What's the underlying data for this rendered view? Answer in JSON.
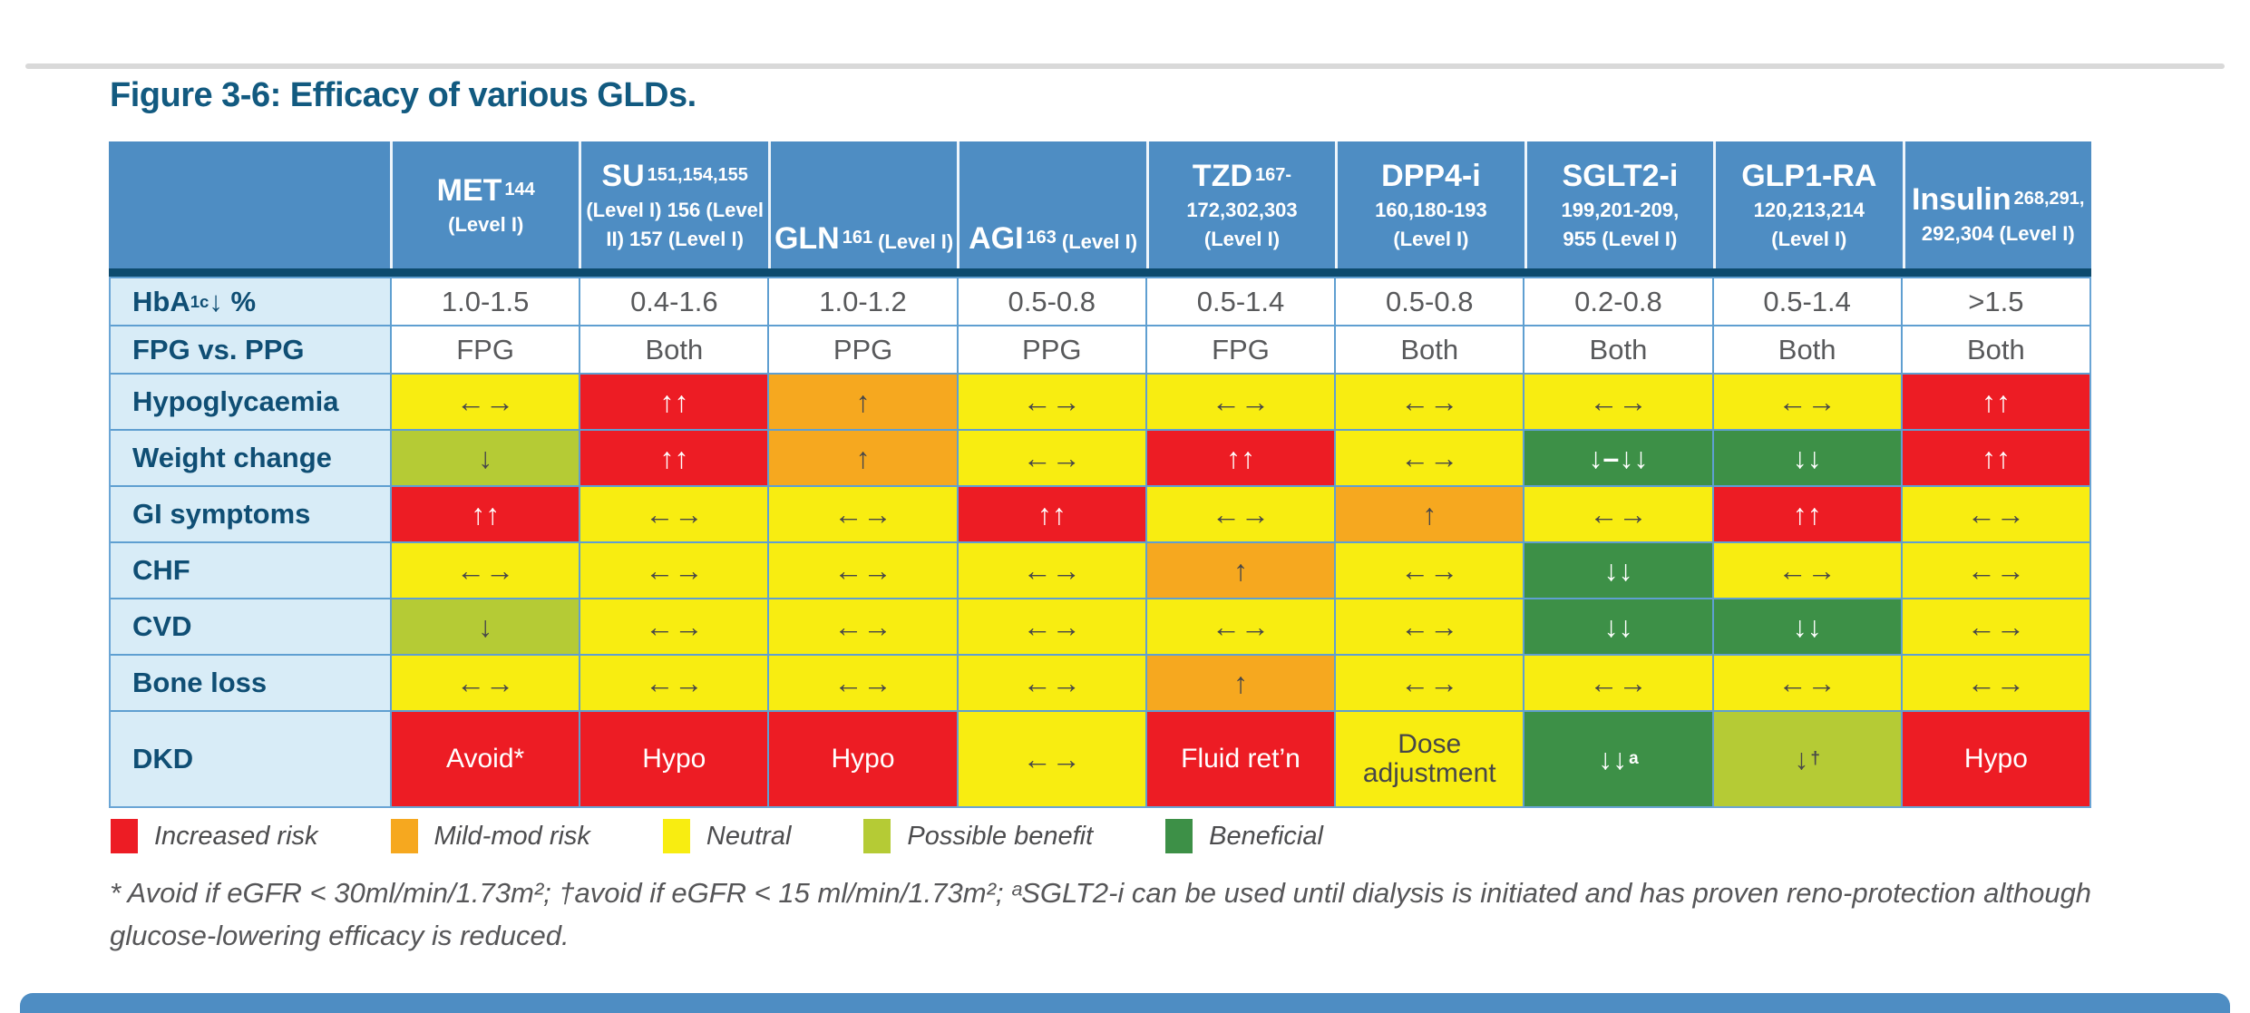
{
  "title": "Figure 3-6: Efficacy of various GLDs.",
  "palette": {
    "increased": "#ed1c24",
    "mildmod": "#f6a81f",
    "neutral": "#f8ed11",
    "possible": "#b5cb35",
    "beneficial": "#3d9047",
    "header_blue": "#4e8dc3",
    "navy": "#0d4b6e",
    "label_bg": "#d8ecf7",
    "label_text": "#0f4e74"
  },
  "table": {
    "columns": [
      {
        "main": "MET",
        "sup": "144",
        "sub": [
          "(Level I)"
        ]
      },
      {
        "main": "SU",
        "sup": "151,154,155",
        "sub": [
          "(Level I) 156 (Level",
          "II) 157 (Level I)"
        ]
      },
      {
        "main": "GLN",
        "sup": "161",
        "tail": "(Level I)",
        "valign": "bottom"
      },
      {
        "main": "AGI",
        "sup": "163",
        "tail": "(Level I)",
        "valign": "bottom"
      },
      {
        "main": "TZD",
        "sup": "167-",
        "sub": [
          "172,302,303",
          "(Level I)"
        ]
      },
      {
        "main": "DPP4-i",
        "sub": [
          "160,180-193",
          "(Level I)"
        ]
      },
      {
        "main": "SGLT2-i",
        "sub": [
          "199,201-209,",
          "955 (Level I)"
        ]
      },
      {
        "main": "GLP1-RA",
        "sub": [
          "120,213,214",
          "(Level I)"
        ]
      },
      {
        "main": "Insulin",
        "sup": "268,291,",
        "sub": [
          "292,304 (Level I)"
        ],
        "valign": "low"
      }
    ],
    "rows": [
      {
        "label": {
          "pre": "HbA",
          "sub": "1c",
          "post": " ↓ %"
        },
        "size": "sm",
        "cells": [
          {
            "v": "1.0-1.5",
            "c": "plain"
          },
          {
            "v": "0.4-1.6",
            "c": "plain"
          },
          {
            "v": "1.0-1.2",
            "c": "plain"
          },
          {
            "v": "0.5-0.8",
            "c": "plain"
          },
          {
            "v": "0.5-1.4",
            "c": "plain"
          },
          {
            "v": "0.5-0.8",
            "c": "plain"
          },
          {
            "v": "0.2-0.8",
            "c": "plain"
          },
          {
            "v": "0.5-1.4",
            "c": "plain"
          },
          {
            "v": ">1.5",
            "c": "plain"
          }
        ]
      },
      {
        "label": {
          "pre": "FPG vs. PPG"
        },
        "size": "sm",
        "cells": [
          {
            "v": "FPG",
            "c": "plain"
          },
          {
            "v": "Both",
            "c": "plain"
          },
          {
            "v": "PPG",
            "c": "plain"
          },
          {
            "v": "PPG",
            "c": "plain"
          },
          {
            "v": "FPG",
            "c": "plain"
          },
          {
            "v": "Both",
            "c": "plain"
          },
          {
            "v": "Both",
            "c": "plain"
          },
          {
            "v": "Both",
            "c": "plain"
          },
          {
            "v": "Both",
            "c": "plain"
          }
        ]
      },
      {
        "label": {
          "pre": "Hypoglycaemia"
        },
        "size": "md",
        "cells": [
          {
            "v": "←→",
            "c": "neutral"
          },
          {
            "v": "↑↑",
            "c": "increased"
          },
          {
            "v": "↑",
            "c": "mildmod"
          },
          {
            "v": "←→",
            "c": "neutral"
          },
          {
            "v": "←→",
            "c": "neutral"
          },
          {
            "v": "←→",
            "c": "neutral"
          },
          {
            "v": "←→",
            "c": "neutral"
          },
          {
            "v": "←→",
            "c": "neutral"
          },
          {
            "v": "↑↑",
            "c": "increased"
          }
        ]
      },
      {
        "label": {
          "pre": "Weight change"
        },
        "size": "md",
        "cells": [
          {
            "v": "↓",
            "c": "possible"
          },
          {
            "v": "↑↑",
            "c": "increased"
          },
          {
            "v": "↑",
            "c": "mildmod"
          },
          {
            "v": "←→",
            "c": "neutral"
          },
          {
            "v": "↑↑",
            "c": "increased"
          },
          {
            "v": "←→",
            "c": "neutral"
          },
          {
            "v": "↓–↓↓",
            "c": "beneficial"
          },
          {
            "v": "↓↓",
            "c": "beneficial"
          },
          {
            "v": "↑↑",
            "c": "increased"
          }
        ]
      },
      {
        "label": {
          "pre": "GI symptoms"
        },
        "size": "md",
        "cells": [
          {
            "v": "↑↑",
            "c": "increased"
          },
          {
            "v": "←→",
            "c": "neutral"
          },
          {
            "v": "←→",
            "c": "neutral"
          },
          {
            "v": "↑↑",
            "c": "increased"
          },
          {
            "v": "←→",
            "c": "neutral"
          },
          {
            "v": "↑",
            "c": "mildmod"
          },
          {
            "v": "←→",
            "c": "neutral"
          },
          {
            "v": "↑↑",
            "c": "increased"
          },
          {
            "v": "←→",
            "c": "neutral"
          }
        ]
      },
      {
        "label": {
          "pre": "CHF"
        },
        "size": "md",
        "cells": [
          {
            "v": "←→",
            "c": "neutral"
          },
          {
            "v": "←→",
            "c": "neutral"
          },
          {
            "v": "←→",
            "c": "neutral"
          },
          {
            "v": "←→",
            "c": "neutral"
          },
          {
            "v": "↑",
            "c": "mildmod"
          },
          {
            "v": "←→",
            "c": "neutral"
          },
          {
            "v": "↓↓",
            "c": "beneficial"
          },
          {
            "v": "←→",
            "c": "neutral"
          },
          {
            "v": "←→",
            "c": "neutral"
          }
        ]
      },
      {
        "label": {
          "pre": "CVD"
        },
        "size": "md",
        "cells": [
          {
            "v": "↓",
            "c": "possible"
          },
          {
            "v": "←→",
            "c": "neutral"
          },
          {
            "v": "←→",
            "c": "neutral"
          },
          {
            "v": "←→",
            "c": "neutral"
          },
          {
            "v": "←→",
            "c": "neutral"
          },
          {
            "v": "←→",
            "c": "neutral"
          },
          {
            "v": "↓↓",
            "c": "beneficial"
          },
          {
            "v": "↓↓",
            "c": "beneficial"
          },
          {
            "v": "←→",
            "c": "neutral"
          }
        ]
      },
      {
        "label": {
          "pre": "Bone loss"
        },
        "size": "md",
        "cells": [
          {
            "v": "←→",
            "c": "neutral"
          },
          {
            "v": "←→",
            "c": "neutral"
          },
          {
            "v": "←→",
            "c": "neutral"
          },
          {
            "v": "←→",
            "c": "neutral"
          },
          {
            "v": "↑",
            "c": "mildmod"
          },
          {
            "v": "←→",
            "c": "neutral"
          },
          {
            "v": "←→",
            "c": "neutral"
          },
          {
            "v": "←→",
            "c": "neutral"
          },
          {
            "v": "←→",
            "c": "neutral"
          }
        ]
      },
      {
        "label": {
          "pre": "DKD"
        },
        "size": "lg",
        "cells": [
          {
            "v": "Avoid*",
            "c": "increased",
            "t": 1
          },
          {
            "v": "Hypo",
            "c": "increased",
            "t": 1
          },
          {
            "v": "Hypo",
            "c": "increased",
            "t": 1
          },
          {
            "v": "←→",
            "c": "neutral"
          },
          {
            "v": "Fluid ret’n",
            "c": "increased",
            "t": 1
          },
          {
            "v": "Dose adjustment",
            "c": "neutral",
            "t": 1
          },
          {
            "v": "↓↓",
            "sup": "a",
            "c": "beneficial"
          },
          {
            "v": "↓",
            "sup": "†",
            "c": "possible"
          },
          {
            "v": "Hypo",
            "c": "increased",
            "t": 1
          }
        ]
      }
    ]
  },
  "legend": {
    "items": [
      {
        "label": "Increased risk",
        "color": "#ed1c24"
      },
      {
        "label": "Mild-mod risk",
        "color": "#f6a81f"
      },
      {
        "label": "Neutral",
        "color": "#f8ed11"
      },
      {
        "label": "Possible benefit",
        "color": "#b5cb35"
      },
      {
        "label": "Beneficial",
        "color": "#3d9047"
      }
    ]
  },
  "footnote": "* Avoid if eGFR < 30ml/min/1.73m²; †avoid if eGFR < 15 ml/min/1.73m²; ᵃSGLT2-i can be used until dialysis is initiated and has proven reno-protection although glucose-lowering efficacy is reduced."
}
